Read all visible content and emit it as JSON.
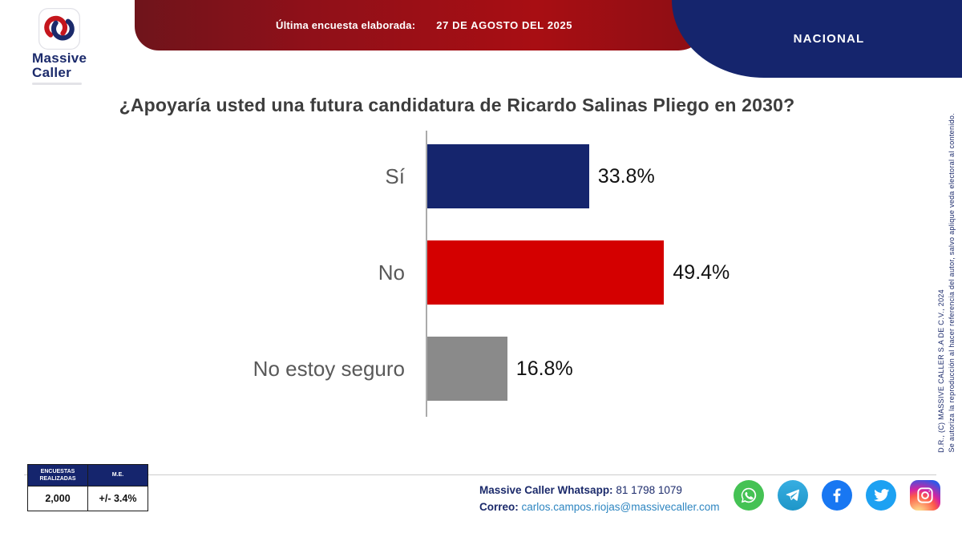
{
  "logo": {
    "line1": "Massive",
    "line2": "Caller"
  },
  "header": {
    "last_survey_label": "Última encuesta elaborada:",
    "last_survey_date": "27 DE AGOSTO DEL 2025",
    "region_badge": "NACIONAL"
  },
  "chart_data": {
    "type": "bar",
    "orientation": "horizontal",
    "title": "¿Apoyaría usted una futura candidatura de Ricardo Salinas Pliego en 2030?",
    "categories": [
      "Sí",
      "No",
      "No estoy seguro"
    ],
    "values": [
      33.8,
      49.4,
      16.8
    ],
    "value_labels": [
      "33.8%",
      "49.4%",
      "16.8%"
    ],
    "bar_colors": [
      "#15256d",
      "#d40000",
      "#8a8a8a"
    ],
    "xlim": [
      0,
      60
    ],
    "grid": false,
    "legend": false
  },
  "rights_note": {
    "line_copyright": "D.R., (C) MASSIVE CALLER S.A DE C.V., 2024",
    "line_authorization": "Se autoriza la reproducción al hacer referencia del autor, salvo aplique veda electoral al contenido."
  },
  "stats": {
    "col1_header": "ENCUESTAS REALIZADAS",
    "col2_header": "M.E.",
    "col1_value": "2,000",
    "col2_value": "+/- 3.4%"
  },
  "contact": {
    "whatsapp_label": "Massive Caller Whatsapp:",
    "whatsapp_number": " 81 1798 1079",
    "email_label": "Correo:",
    "email": " carlos.campos.riojas@massivecaller.com"
  },
  "colors": {
    "navy": "#15256d",
    "red": "#d40000",
    "gray": "#8a8a8a",
    "link_blue": "#2e86c1"
  }
}
